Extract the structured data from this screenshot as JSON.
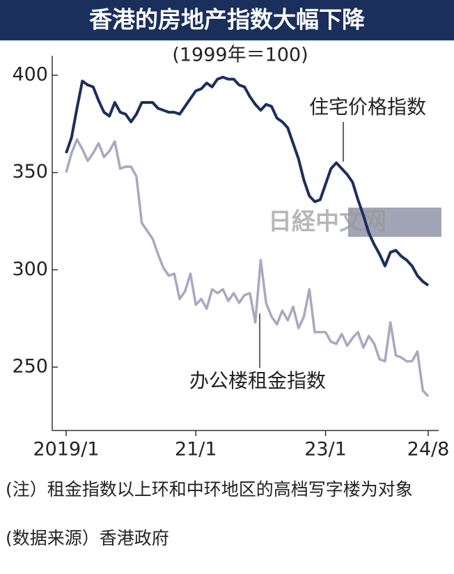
{
  "chart_data": {
    "type": "line",
    "title": "香港的房地产指数大幅下降",
    "subtitle": "(1999年＝100)",
    "watermark": "日経中文网",
    "categories": [
      "2019/1",
      null,
      null,
      null,
      null,
      null,
      null,
      null,
      null,
      null,
      null,
      null,
      null,
      null,
      null,
      null,
      null,
      null,
      null,
      null,
      null,
      null,
      null,
      null,
      "21/1",
      null,
      null,
      null,
      null,
      null,
      null,
      null,
      null,
      null,
      null,
      null,
      null,
      null,
      null,
      null,
      null,
      null,
      null,
      null,
      null,
      null,
      null,
      null,
      "23/1",
      null,
      null,
      null,
      null,
      null,
      null,
      null,
      null,
      null,
      null,
      null,
      null,
      null,
      null,
      null,
      null,
      null,
      null,
      "24/8"
    ],
    "series": [
      {
        "name": "住宅价格指数",
        "color": "#1b2f5c",
        "values": [
          360,
          368,
          383,
          397,
          395,
          394,
          387,
          381,
          379,
          386,
          381,
          380,
          376,
          380,
          386,
          386,
          386,
          383,
          382,
          381,
          381,
          380,
          384,
          388,
          392,
          393,
          396,
          394,
          398,
          399,
          398,
          398,
          395,
          394,
          389,
          385,
          382,
          385,
          384,
          378,
          376,
          373,
          365,
          357,
          346,
          338,
          335,
          336,
          344,
          352,
          355,
          352,
          349,
          345,
          336,
          328,
          319,
          313,
          308,
          302,
          309,
          310,
          307,
          305,
          302,
          297,
          294,
          292
        ]
      },
      {
        "name": "办公楼租金指数",
        "color": "#a8a8c2",
        "values": [
          350,
          360,
          367,
          362,
          356,
          360,
          365,
          358,
          361,
          366,
          352,
          353,
          353,
          348,
          324,
          320,
          316,
          308,
          301,
          297,
          298,
          285,
          289,
          298,
          282,
          285,
          280,
          290,
          288,
          290,
          284,
          288,
          283,
          287,
          288,
          273,
          305,
          283,
          276,
          272,
          279,
          274,
          281,
          270,
          276,
          290,
          268,
          268,
          268,
          263,
          262,
          267,
          261,
          265,
          268,
          260,
          266,
          262,
          254,
          253,
          273,
          256,
          255,
          253,
          253,
          258,
          238,
          235
        ]
      }
    ],
    "ylim": [
      217.5,
      410
    ],
    "yticks": [
      250,
      300,
      350,
      400
    ],
    "notes": [
      "(注）租金指数以上环和中环地区的高档写字楼为对象",
      "(数据来源）香港政府"
    ]
  }
}
